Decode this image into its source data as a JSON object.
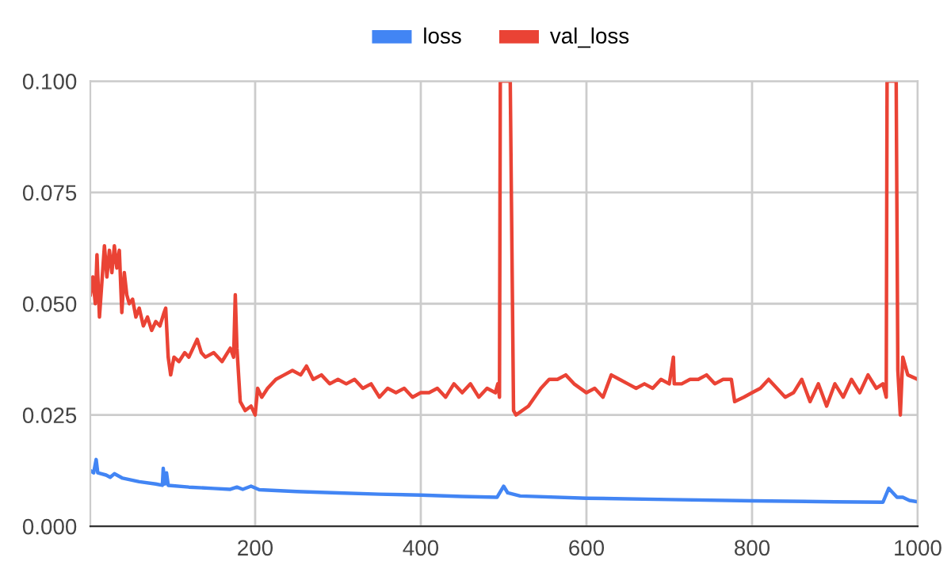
{
  "chart_data": {
    "type": "line",
    "legend": "top",
    "grid": true,
    "marker": "none",
    "line_style": "solid",
    "xlim": [
      1,
      1000
    ],
    "xticks": [
      200,
      400,
      600,
      800,
      1000
    ],
    "ylim": [
      0,
      0.1
    ],
    "yticks": [
      {
        "value": 0,
        "label": "0.000"
      },
      {
        "value": 0.025,
        "label": "0.025"
      },
      {
        "value": 0.05,
        "label": "0.050"
      },
      {
        "value": 0.075,
        "label": "0.075"
      },
      {
        "value": 0.1,
        "label": "0.100"
      }
    ],
    "series": [
      {
        "name": "loss",
        "color": "#4285f4",
        "x": [
          1,
          5,
          8,
          10,
          20,
          25,
          30,
          40,
          60,
          80,
          88,
          89,
          91,
          93,
          95,
          120,
          150,
          170,
          178,
          185,
          195,
          205,
          250,
          300,
          350,
          400,
          450,
          492,
          500,
          505,
          520,
          600,
          700,
          800,
          900,
          958,
          965,
          975,
          982,
          990,
          1000
        ],
        "values": [
          0.0125,
          0.012,
          0.015,
          0.012,
          0.0115,
          0.011,
          0.0118,
          0.0108,
          0.01,
          0.0095,
          0.0092,
          0.013,
          0.0095,
          0.012,
          0.0092,
          0.0088,
          0.0085,
          0.0083,
          0.0088,
          0.0083,
          0.009,
          0.0082,
          0.0078,
          0.0075,
          0.0072,
          0.007,
          0.0067,
          0.0065,
          0.009,
          0.0075,
          0.0068,
          0.0063,
          0.006,
          0.0057,
          0.0055,
          0.0054,
          0.0085,
          0.0065,
          0.0065,
          0.0058,
          0.0055
        ]
      },
      {
        "name": "val_loss",
        "color": "#ea4335",
        "x": [
          1,
          4,
          7,
          9,
          12,
          15,
          18,
          21,
          24,
          27,
          30,
          33,
          36,
          39,
          42,
          45,
          48,
          52,
          56,
          60,
          65,
          70,
          75,
          80,
          85,
          90,
          92,
          95,
          98,
          102,
          108,
          115,
          120,
          125,
          130,
          135,
          140,
          150,
          160,
          170,
          174,
          176,
          178,
          182,
          188,
          195,
          200,
          203,
          208,
          215,
          225,
          235,
          245,
          255,
          262,
          270,
          280,
          290,
          300,
          310,
          320,
          330,
          340,
          350,
          360,
          370,
          380,
          390,
          400,
          410,
          420,
          430,
          440,
          450,
          460,
          470,
          480,
          490,
          493,
          495,
          496,
          508,
          512,
          515,
          530,
          545,
          555,
          565,
          575,
          585,
          600,
          610,
          620,
          630,
          640,
          650,
          660,
          670,
          680,
          690,
          700,
          705,
          706,
          715,
          725,
          735,
          745,
          755,
          765,
          775,
          779,
          790,
          800,
          810,
          820,
          830,
          840,
          850,
          860,
          870,
          880,
          890,
          900,
          910,
          920,
          930,
          940,
          950,
          958,
          962,
          963,
          974,
          976,
          979,
          982,
          988,
          1000
        ],
        "values": [
          0.052,
          0.056,
          0.05,
          0.061,
          0.047,
          0.055,
          0.063,
          0.056,
          0.062,
          0.057,
          0.063,
          0.058,
          0.062,
          0.048,
          0.057,
          0.052,
          0.05,
          0.051,
          0.047,
          0.049,
          0.045,
          0.047,
          0.044,
          0.046,
          0.045,
          0.048,
          0.049,
          0.038,
          0.034,
          0.038,
          0.037,
          0.039,
          0.038,
          0.04,
          0.042,
          0.039,
          0.038,
          0.039,
          0.037,
          0.04,
          0.038,
          0.052,
          0.04,
          0.028,
          0.026,
          0.027,
          0.025,
          0.031,
          0.029,
          0.031,
          0.033,
          0.034,
          0.035,
          0.034,
          0.036,
          0.033,
          0.034,
          0.032,
          0.033,
          0.032,
          0.033,
          0.031,
          0.032,
          0.029,
          0.031,
          0.03,
          0.031,
          0.029,
          0.03,
          0.03,
          0.031,
          0.029,
          0.032,
          0.03,
          0.032,
          0.029,
          0.031,
          0.03,
          0.032,
          0.029,
          0.1,
          0.1,
          0.026,
          0.025,
          0.027,
          0.031,
          0.033,
          0.033,
          0.034,
          0.032,
          0.03,
          0.031,
          0.029,
          0.034,
          0.033,
          0.032,
          0.031,
          0.032,
          0.031,
          0.033,
          0.032,
          0.038,
          0.032,
          0.032,
          0.033,
          0.033,
          0.034,
          0.032,
          0.033,
          0.033,
          0.028,
          0.029,
          0.03,
          0.031,
          0.033,
          0.031,
          0.029,
          0.03,
          0.033,
          0.028,
          0.032,
          0.027,
          0.032,
          0.029,
          0.033,
          0.03,
          0.034,
          0.031,
          0.032,
          0.029,
          0.1,
          0.1,
          0.035,
          0.025,
          0.038,
          0.034,
          0.033
        ]
      }
    ]
  }
}
